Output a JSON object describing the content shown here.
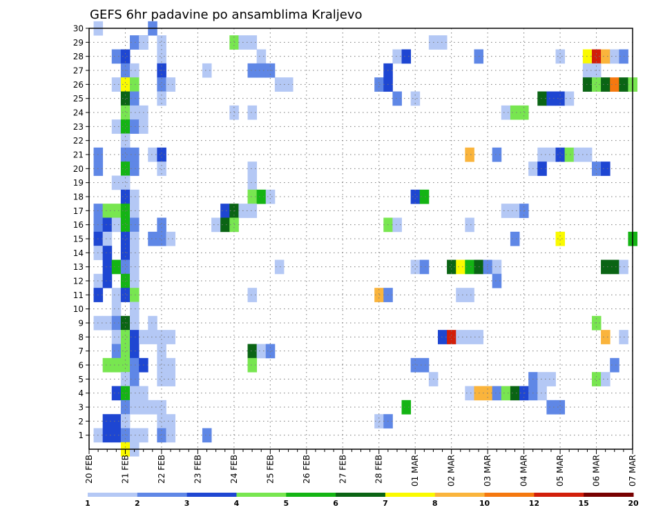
{
  "chart_data": {
    "type": "heatmap",
    "title": "GEFS 6hr padavine po ansamblima Kraljevo",
    "xlabel": "",
    "ylabel": "",
    "y_range": [
      0,
      30
    ],
    "y_ticks": [
      1,
      2,
      3,
      4,
      5,
      6,
      7,
      8,
      9,
      10,
      11,
      12,
      13,
      14,
      15,
      16,
      17,
      18,
      19,
      20,
      21,
      22,
      23,
      24,
      25,
      26,
      27,
      28,
      29,
      30
    ],
    "x_range_steps": [
      0,
      60
    ],
    "x_ticks": [
      {
        "step": 0,
        "label": "20 FEB"
      },
      {
        "step": 4,
        "label": "21 FEB"
      },
      {
        "step": 8,
        "label": "22 FEB"
      },
      {
        "step": 12,
        "label": "23 FEB"
      },
      {
        "step": 16,
        "label": "24 FEB"
      },
      {
        "step": 20,
        "label": "25 FEB"
      },
      {
        "step": 24,
        "label": "26 FEB"
      },
      {
        "step": 28,
        "label": "27 FEB"
      },
      {
        "step": 32,
        "label": "28 FEB"
      },
      {
        "step": 36,
        "label": "01 MAR"
      },
      {
        "step": 40,
        "label": "02 MAR"
      },
      {
        "step": 44,
        "label": "03 MAR"
      },
      {
        "step": 48,
        "label": "04 MAR"
      },
      {
        "step": 52,
        "label": "05 MAR"
      },
      {
        "step": 56,
        "label": "06 MAR"
      },
      {
        "step": 60,
        "label": "07 MAR"
      }
    ],
    "legend": {
      "labels": [
        "1",
        "2",
        "3",
        "4",
        "5",
        "6",
        "7",
        "8",
        "10",
        "12",
        "15",
        "20"
      ],
      "colors": [
        "#b4c8f5",
        "#5f87e6",
        "#1e46d2",
        "#78e650",
        "#14b414",
        "#0a6414",
        "#fafa00",
        "#fab43c",
        "#f5780f",
        "#d21e0a",
        "#780000"
      ]
    },
    "cells": [
      [
        1,
        30,
        0
      ],
      [
        7,
        30,
        1
      ],
      [
        6,
        29,
        1
      ],
      [
        5,
        29,
        1
      ],
      [
        6,
        29,
        0
      ],
      [
        8,
        29,
        0
      ],
      [
        16,
        29,
        3
      ],
      [
        17,
        29,
        0
      ],
      [
        18,
        29,
        0
      ],
      [
        38,
        29,
        0
      ],
      [
        39,
        29,
        0
      ],
      [
        3,
        28,
        1
      ],
      [
        4,
        28,
        2
      ],
      [
        8,
        28,
        0
      ],
      [
        19,
        28,
        0
      ],
      [
        34,
        28,
        0
      ],
      [
        35,
        28,
        2
      ],
      [
        43,
        28,
        1
      ],
      [
        52,
        28,
        0
      ],
      [
        55,
        28,
        6
      ],
      [
        56,
        28,
        9
      ],
      [
        57,
        28,
        7
      ],
      [
        58,
        28,
        0
      ],
      [
        59,
        28,
        1
      ],
      [
        4,
        27,
        1
      ],
      [
        5,
        27,
        0
      ],
      [
        8,
        27,
        2
      ],
      [
        13,
        27,
        0
      ],
      [
        18,
        27,
        1
      ],
      [
        19,
        27,
        1
      ],
      [
        20,
        27,
        1
      ],
      [
        33,
        27,
        2
      ],
      [
        55,
        27,
        0
      ],
      [
        56,
        27,
        0
      ],
      [
        3,
        26,
        0
      ],
      [
        4,
        26,
        6
      ],
      [
        5,
        26,
        3
      ],
      [
        8,
        26,
        1
      ],
      [
        9,
        26,
        0
      ],
      [
        21,
        26,
        0
      ],
      [
        22,
        26,
        0
      ],
      [
        32,
        26,
        1
      ],
      [
        33,
        26,
        2
      ],
      [
        55,
        26,
        5
      ],
      [
        56,
        26,
        3
      ],
      [
        57,
        26,
        5
      ],
      [
        58,
        26,
        8
      ],
      [
        59,
        26,
        5
      ],
      [
        60,
        26,
        3
      ],
      [
        4,
        25,
        5
      ],
      [
        5,
        25,
        1
      ],
      [
        8,
        25,
        0
      ],
      [
        34,
        25,
        1
      ],
      [
        36,
        25,
        0
      ],
      [
        50,
        25,
        5
      ],
      [
        51,
        25,
        2
      ],
      [
        52,
        25,
        2
      ],
      [
        53,
        25,
        0
      ],
      [
        4,
        24,
        3
      ],
      [
        5,
        24,
        0
      ],
      [
        6,
        24,
        0
      ],
      [
        16,
        24,
        0
      ],
      [
        18,
        24,
        0
      ],
      [
        46,
        24,
        0
      ],
      [
        47,
        24,
        3
      ],
      [
        48,
        24,
        3
      ],
      [
        3,
        23,
        0
      ],
      [
        4,
        23,
        4
      ],
      [
        5,
        23,
        1
      ],
      [
        6,
        23,
        0
      ],
      [
        4,
        22,
        0
      ],
      [
        1,
        21,
        1
      ],
      [
        4,
        21,
        1
      ],
      [
        5,
        21,
        1
      ],
      [
        7,
        21,
        0
      ],
      [
        8,
        21,
        2
      ],
      [
        42,
        21,
        7
      ],
      [
        45,
        21,
        1
      ],
      [
        50,
        21,
        0
      ],
      [
        51,
        21,
        0
      ],
      [
        52,
        21,
        2
      ],
      [
        53,
        21,
        3
      ],
      [
        54,
        21,
        0
      ],
      [
        55,
        21,
        0
      ],
      [
        1,
        20,
        1
      ],
      [
        4,
        20,
        4
      ],
      [
        5,
        20,
        1
      ],
      [
        8,
        20,
        0
      ],
      [
        18,
        20,
        0
      ],
      [
        49,
        20,
        0
      ],
      [
        50,
        20,
        2
      ],
      [
        56,
        20,
        1
      ],
      [
        57,
        20,
        2
      ],
      [
        3,
        19,
        0
      ],
      [
        4,
        19,
        0
      ],
      [
        18,
        19,
        0
      ],
      [
        4,
        18,
        2
      ],
      [
        5,
        18,
        0
      ],
      [
        18,
        18,
        3
      ],
      [
        19,
        18,
        4
      ],
      [
        20,
        18,
        0
      ],
      [
        36,
        18,
        2
      ],
      [
        37,
        18,
        4
      ],
      [
        1,
        17,
        1
      ],
      [
        2,
        17,
        3
      ],
      [
        3,
        17,
        3
      ],
      [
        4,
        17,
        4
      ],
      [
        5,
        17,
        0
      ],
      [
        15,
        17,
        2
      ],
      [
        16,
        17,
        5
      ],
      [
        17,
        17,
        0
      ],
      [
        18,
        17,
        0
      ],
      [
        46,
        17,
        0
      ],
      [
        47,
        17,
        0
      ],
      [
        48,
        17,
        1
      ],
      [
        1,
        16,
        1
      ],
      [
        2,
        16,
        2
      ],
      [
        3,
        16,
        0
      ],
      [
        4,
        16,
        4
      ],
      [
        5,
        16,
        1
      ],
      [
        8,
        16,
        1
      ],
      [
        14,
        16,
        0
      ],
      [
        15,
        16,
        5
      ],
      [
        16,
        16,
        3
      ],
      [
        33,
        16,
        3
      ],
      [
        34,
        16,
        0
      ],
      [
        42,
        16,
        0
      ],
      [
        1,
        15,
        2
      ],
      [
        2,
        15,
        0
      ],
      [
        4,
        15,
        2
      ],
      [
        5,
        15,
        0
      ],
      [
        7,
        15,
        1
      ],
      [
        8,
        15,
        1
      ],
      [
        9,
        15,
        0
      ],
      [
        47,
        15,
        1
      ],
      [
        52,
        15,
        6
      ],
      [
        60,
        15,
        4
      ],
      [
        1,
        14,
        0
      ],
      [
        2,
        14,
        2
      ],
      [
        4,
        14,
        2
      ],
      [
        5,
        14,
        0
      ],
      [
        2,
        13,
        2
      ],
      [
        3,
        13,
        4
      ],
      [
        4,
        13,
        1
      ],
      [
        5,
        13,
        0
      ],
      [
        21,
        13,
        0
      ],
      [
        36,
        13,
        0
      ],
      [
        37,
        13,
        1
      ],
      [
        40,
        13,
        5
      ],
      [
        41,
        13,
        6
      ],
      [
        42,
        13,
        4
      ],
      [
        43,
        13,
        5
      ],
      [
        44,
        13,
        1
      ],
      [
        45,
        13,
        0
      ],
      [
        57,
        13,
        5
      ],
      [
        58,
        13,
        5
      ],
      [
        59,
        13,
        0
      ],
      [
        1,
        12,
        0
      ],
      [
        2,
        12,
        2
      ],
      [
        4,
        12,
        4
      ],
      [
        5,
        12,
        0
      ],
      [
        45,
        12,
        1
      ],
      [
        1,
        11,
        2
      ],
      [
        3,
        11,
        0
      ],
      [
        4,
        11,
        2
      ],
      [
        5,
        11,
        3
      ],
      [
        18,
        11,
        0
      ],
      [
        32,
        11,
        7
      ],
      [
        33,
        11,
        1
      ],
      [
        41,
        11,
        0
      ],
      [
        42,
        11,
        0
      ],
      [
        3,
        10,
        0
      ],
      [
        5,
        10,
        0
      ],
      [
        1,
        9,
        0
      ],
      [
        2,
        9,
        0
      ],
      [
        3,
        9,
        1
      ],
      [
        4,
        9,
        5
      ],
      [
        5,
        9,
        0
      ],
      [
        7,
        9,
        0
      ],
      [
        56,
        9,
        3
      ],
      [
        3,
        8,
        0
      ],
      [
        4,
        8,
        3
      ],
      [
        5,
        8,
        2
      ],
      [
        6,
        8,
        0
      ],
      [
        7,
        8,
        0
      ],
      [
        8,
        8,
        0
      ],
      [
        9,
        8,
        0
      ],
      [
        39,
        8,
        2
      ],
      [
        40,
        8,
        9
      ],
      [
        41,
        8,
        0
      ],
      [
        42,
        8,
        0
      ],
      [
        43,
        8,
        0
      ],
      [
        57,
        8,
        7
      ],
      [
        59,
        8,
        0
      ],
      [
        3,
        7,
        1
      ],
      [
        4,
        7,
        3
      ],
      [
        5,
        7,
        2
      ],
      [
        8,
        7,
        0
      ],
      [
        18,
        7,
        5
      ],
      [
        19,
        7,
        0
      ],
      [
        20,
        7,
        1
      ],
      [
        2,
        6,
        3
      ],
      [
        3,
        6,
        3
      ],
      [
        4,
        6,
        3
      ],
      [
        5,
        6,
        1
      ],
      [
        6,
        6,
        2
      ],
      [
        8,
        6,
        0
      ],
      [
        9,
        6,
        0
      ],
      [
        18,
        6,
        3
      ],
      [
        36,
        6,
        1
      ],
      [
        37,
        6,
        1
      ],
      [
        58,
        6,
        1
      ],
      [
        4,
        5,
        0
      ],
      [
        5,
        5,
        1
      ],
      [
        8,
        5,
        0
      ],
      [
        9,
        5,
        0
      ],
      [
        38,
        5,
        0
      ],
      [
        49,
        5,
        1
      ],
      [
        50,
        5,
        0
      ],
      [
        51,
        5,
        0
      ],
      [
        56,
        5,
        3
      ],
      [
        57,
        5,
        0
      ],
      [
        3,
        4,
        2
      ],
      [
        4,
        4,
        4
      ],
      [
        5,
        4,
        0
      ],
      [
        6,
        4,
        0
      ],
      [
        42,
        4,
        0
      ],
      [
        43,
        4,
        7
      ],
      [
        44,
        4,
        7
      ],
      [
        45,
        4,
        1
      ],
      [
        46,
        4,
        3
      ],
      [
        47,
        4,
        5
      ],
      [
        48,
        4,
        2
      ],
      [
        49,
        4,
        1
      ],
      [
        50,
        4,
        0
      ],
      [
        4,
        3,
        1
      ],
      [
        5,
        3,
        0
      ],
      [
        6,
        3,
        0
      ],
      [
        7,
        3,
        0
      ],
      [
        8,
        3,
        0
      ],
      [
        35,
        3,
        4
      ],
      [
        51,
        3,
        1
      ],
      [
        52,
        3,
        1
      ],
      [
        2,
        2,
        2
      ],
      [
        3,
        2,
        2
      ],
      [
        4,
        2,
        0
      ],
      [
        8,
        2,
        0
      ],
      [
        9,
        2,
        0
      ],
      [
        32,
        2,
        0
      ],
      [
        33,
        2,
        1
      ],
      [
        1,
        1,
        0
      ],
      [
        2,
        1,
        2
      ],
      [
        3,
        1,
        2
      ],
      [
        4,
        1,
        1
      ],
      [
        5,
        1,
        0
      ],
      [
        6,
        1,
        0
      ],
      [
        8,
        1,
        1
      ],
      [
        9,
        1,
        0
      ],
      [
        13,
        1,
        1
      ],
      [
        4,
        0,
        6
      ],
      [
        5,
        0,
        0
      ]
    ]
  }
}
